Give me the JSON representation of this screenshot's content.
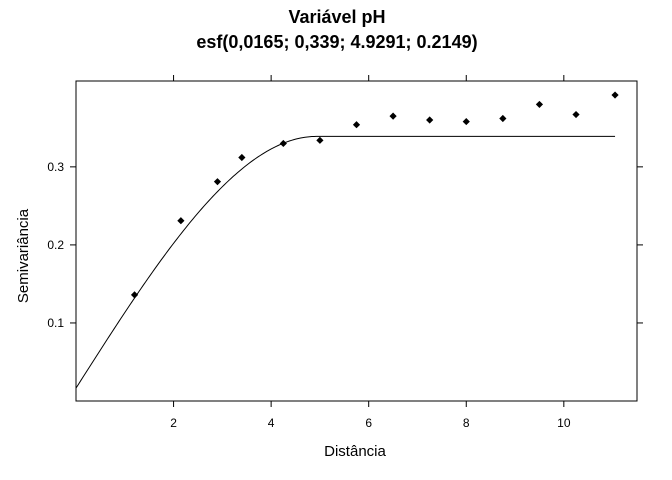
{
  "chart_data": {
    "type": "scatter",
    "title": "Variável pH",
    "subtitle": "esf(0,0165; 0,339; 4.9291; 0.2149)",
    "xlabel": "Distância",
    "ylabel": "Semivariância",
    "xlim": [
      0,
      11.5
    ],
    "ylim": [
      0,
      0.41
    ],
    "x_ticks": [
      2,
      4,
      6,
      8,
      10
    ],
    "x_tick_labels": [
      "2",
      "4",
      "6",
      "8",
      "10"
    ],
    "y_ticks": [
      0.1,
      0.2,
      0.3
    ],
    "y_tick_labels": [
      "0.1",
      "0.2",
      "0.3"
    ],
    "grid": false,
    "series": [
      {
        "kind": "points",
        "x": [
          1.2,
          2.15,
          2.9,
          3.4,
          4.25,
          5.0,
          5.75,
          6.5,
          7.25,
          8.0,
          8.75,
          9.5,
          10.25,
          11.05
        ],
        "y": [
          0.136,
          0.231,
          0.281,
          0.312,
          0.33,
          0.334,
          0.354,
          0.365,
          0.36,
          0.358,
          0.362,
          0.38,
          0.367,
          0.392
        ]
      },
      {
        "kind": "model",
        "model": "spherical",
        "nugget": 0.0165,
        "sill": 0.339,
        "range": 4.9291,
        "x_max": 11.05
      }
    ]
  }
}
